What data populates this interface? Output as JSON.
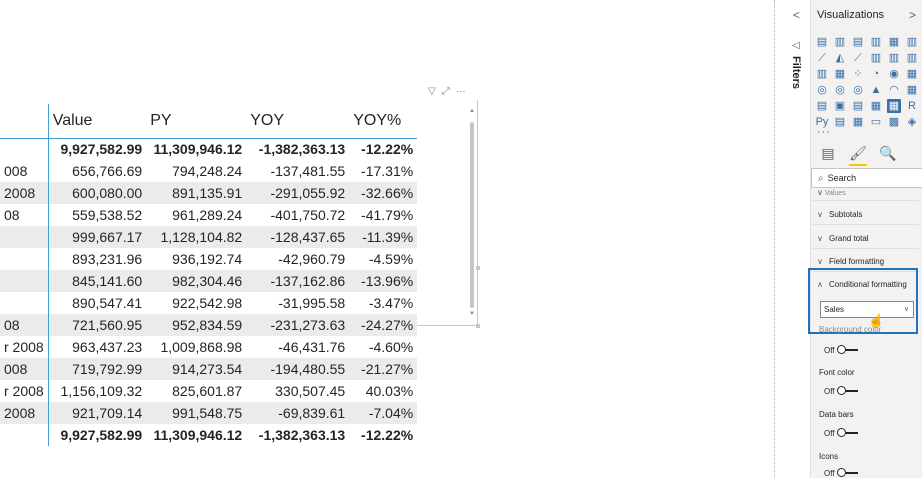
{
  "table": {
    "headers": {
      "label": "",
      "value": "Value",
      "py": "PY",
      "yoy": "YOY",
      "yoyp": "YOY%"
    },
    "rows": [
      {
        "label": "",
        "value": "9,927,582.99",
        "py": "11,309,946.12",
        "yoy": "-1,382,363.13",
        "yoyp": "-12.22%",
        "bold": true
      },
      {
        "label": "008",
        "value": "656,766.69",
        "py": "794,248.24",
        "yoy": "-137,481.55",
        "yoyp": "-17.31%"
      },
      {
        "label": "2008",
        "value": "600,080.00",
        "py": "891,135.91",
        "yoy": "-291,055.92",
        "yoyp": "-32.66%"
      },
      {
        "label": "08",
        "value": "559,538.52",
        "py": "961,289.24",
        "yoy": "-401,750.72",
        "yoyp": "-41.79%"
      },
      {
        "label": "",
        "value": "999,667.17",
        "py": "1,128,104.82",
        "yoy": "-128,437.65",
        "yoyp": "-11.39%"
      },
      {
        "label": "",
        "value": "893,231.96",
        "py": "936,192.74",
        "yoy": "-42,960.79",
        "yoyp": "-4.59%"
      },
      {
        "label": "",
        "value": "845,141.60",
        "py": "982,304.46",
        "yoy": "-137,162.86",
        "yoyp": "-13.96%"
      },
      {
        "label": "",
        "value": "890,547.41",
        "py": "922,542.98",
        "yoy": "-31,995.58",
        "yoyp": "-3.47%"
      },
      {
        "label": "08",
        "value": "721,560.95",
        "py": "952,834.59",
        "yoy": "-231,273.63",
        "yoyp": "-24.27%"
      },
      {
        "label": "r 2008",
        "value": "963,437.23",
        "py": "1,009,868.98",
        "yoy": "-46,431.76",
        "yoyp": "-4.60%"
      },
      {
        "label": "008",
        "value": "719,792.99",
        "py": "914,273.54",
        "yoy": "-194,480.55",
        "yoyp": "-21.27%"
      },
      {
        "label": "r 2008",
        "value": "1,156,109.32",
        "py": "825,601.87",
        "yoy": "330,507.45",
        "yoyp": "40.03%"
      },
      {
        "label": " 2008",
        "value": "921,709.14",
        "py": "991,548.75",
        "yoy": "-69,839.61",
        "yoyp": "-7.04%"
      },
      {
        "label": "",
        "value": "9,927,582.99",
        "py": "11,309,946.12",
        "yoy": "-1,382,363.13",
        "yoyp": "-12.22%",
        "bold": true
      }
    ]
  },
  "visual_header": {
    "filter": "▽",
    "focus": "⤢",
    "more": "···"
  },
  "filters": {
    "label": "Filters",
    "collapse": "<",
    "arrow": "◁"
  },
  "viz_pane": {
    "title": "Visualizations",
    "expand": ">",
    "icons": [
      "▤",
      "▥",
      "▤",
      "▥",
      "▦",
      "▥",
      "⟋",
      "◭",
      "⟋",
      "▥",
      "▥",
      "▥",
      "▥",
      "▦",
      "⁘",
      "◔",
      "◉",
      "▦",
      "◎",
      "◎",
      "◎",
      "▲",
      "◠",
      "▦",
      "▤",
      "▣",
      "▤",
      "▦",
      "▦",
      "R",
      "Py",
      "▤",
      "▦",
      "▭",
      "▩",
      "◈"
    ],
    "more": "···",
    "tabs": [
      "▤",
      "🖌",
      "🔍"
    ],
    "search_placeholder": "Search",
    "partial_section": "Values",
    "sections": {
      "subtotals": "Subtotals",
      "grand_total": "Grand total",
      "field_formatting": "Field formatting",
      "conditional_formatting": "Conditional formatting"
    },
    "cf_selected": "Sales",
    "background_color": "Background color",
    "font_color": "Font color",
    "data_bars": "Data bars",
    "icons_label": "Icons",
    "toggle_off": "Off"
  }
}
